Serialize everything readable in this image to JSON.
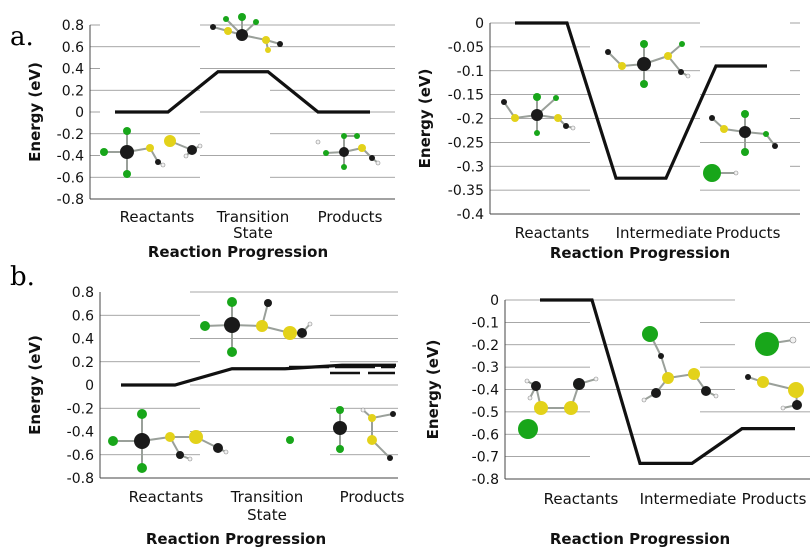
{
  "panel_labels": [
    "a.",
    "b."
  ],
  "colors": {
    "energy_line": "#111111",
    "grid": "#8a8a8a",
    "carbon": "#1a1a1a",
    "chlorine": "#18a61a",
    "sulfur": "#e3d21a",
    "hydrogen": "#f2f2f2"
  },
  "chart_data": [
    {
      "type": "line",
      "panel": "a.",
      "categories": [
        "Reactants",
        "Transition State",
        "Products"
      ],
      "values": [
        0,
        0.37,
        0
      ],
      "xlabel": "Reaction Progression",
      "ylabel": "Energy (eV)",
      "ylim": [
        -0.8,
        0.8
      ],
      "ytick_step": 0.2,
      "yticks": [
        "-0.8",
        "-0.6",
        "-0.4",
        "-0.2",
        "0",
        "0.2",
        "0.4",
        "0.6",
        "0.8"
      ],
      "grid": true,
      "molecule_insets": 3
    },
    {
      "type": "line",
      "panel": "a.",
      "categories": [
        "Reactants",
        "Intermediate",
        "Products"
      ],
      "values": [
        0,
        -0.325,
        -0.09
      ],
      "xlabel": "Reaction Progression",
      "ylabel": "Energy (eV)",
      "ylim": [
        -0.4,
        0
      ],
      "ytick_step": 0.05,
      "yticks": [
        "-0.4",
        "-0.35",
        "-0.3",
        "-0.25",
        "-0.2",
        "-0.15",
        "-0.1",
        "-0.05",
        "0"
      ],
      "grid": true,
      "molecule_insets": 3
    },
    {
      "type": "line",
      "panel": "b.",
      "categories": [
        "Reactants",
        "Transition State",
        "Products"
      ],
      "values": [
        0,
        0.14,
        0.17
      ],
      "xlabel": "Reaction Progression",
      "ylabel": "Energy (eV)",
      "ylim": [
        -0.8,
        0.8
      ],
      "ytick_step": 0.2,
      "yticks": [
        "-0.8",
        "-0.6",
        "-0.4",
        "-0.2",
        "0",
        "0.2",
        "0.4",
        "0.6",
        "0.8"
      ],
      "grid": true,
      "molecule_insets": 3
    },
    {
      "type": "line",
      "panel": "b.",
      "categories": [
        "Reactants",
        "Intermediate",
        "Products"
      ],
      "values": [
        0,
        -0.73,
        -0.575
      ],
      "xlabel": "Reaction Progression",
      "ylabel": "Energy (eV)",
      "ylim": [
        -0.8,
        0
      ],
      "ytick_step": 0.1,
      "yticks": [
        "-0.8",
        "-0.7",
        "-0.6",
        "-0.5",
        "-0.4",
        "-0.3",
        "-0.2",
        "-0.1",
        "0"
      ],
      "grid": true,
      "molecule_insets": 3
    }
  ]
}
